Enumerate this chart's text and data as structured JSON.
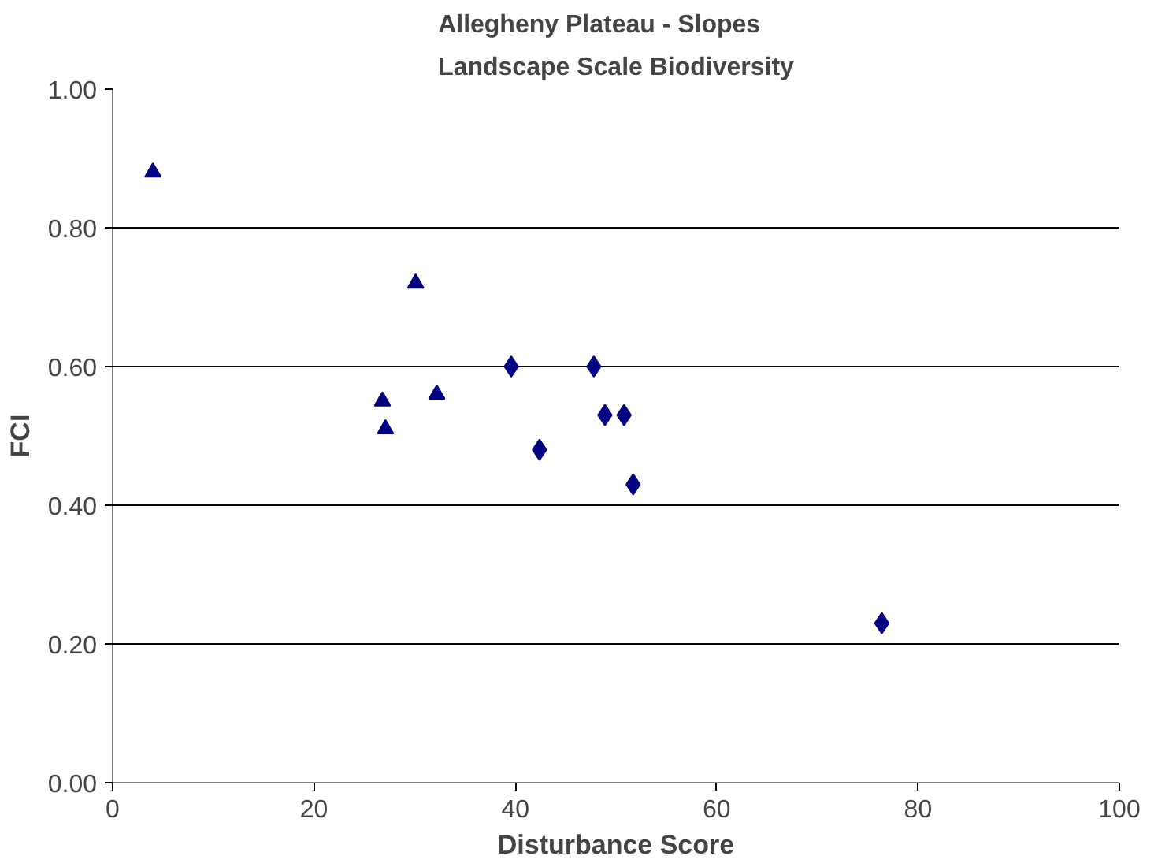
{
  "chart_data": {
    "type": "scatter",
    "title": "Allegheny Plateau - Slopes\nLandscape Scale Biodiversity",
    "xlabel": "Disturbance Score",
    "ylabel": "FCI",
    "series": [
      {
        "color": "#000080",
        "marker": "triangle",
        "x": [
          4.0,
          26.8,
          27.1,
          30.1,
          32.2
        ],
        "values": [
          0.88,
          0.55,
          0.51,
          0.72,
          0.56
        ]
      },
      {
        "color": "#000080",
        "marker": "diamond",
        "x": [
          39.6,
          42.4,
          47.8,
          48.9,
          50.8,
          51.7,
          76.4
        ],
        "values": [
          0.6,
          0.48,
          0.6,
          0.53,
          0.53,
          0.43,
          0.23
        ]
      }
    ],
    "xlim": [
      0,
      100
    ],
    "ylim": [
      0,
      1
    ],
    "xticks": [
      0,
      20,
      40,
      60,
      80,
      100
    ],
    "yticks": [
      {
        "value": 0,
        "label": "0.00"
      },
      {
        "value": 0.2,
        "label": "0.20"
      },
      {
        "value": 0.4,
        "label": "0.40"
      },
      {
        "value": 0.6,
        "label": "0.60"
      },
      {
        "value": 0.8,
        "label": "0.80"
      },
      {
        "value": 1,
        "label": "1.00"
      }
    ],
    "grid": "y"
  }
}
